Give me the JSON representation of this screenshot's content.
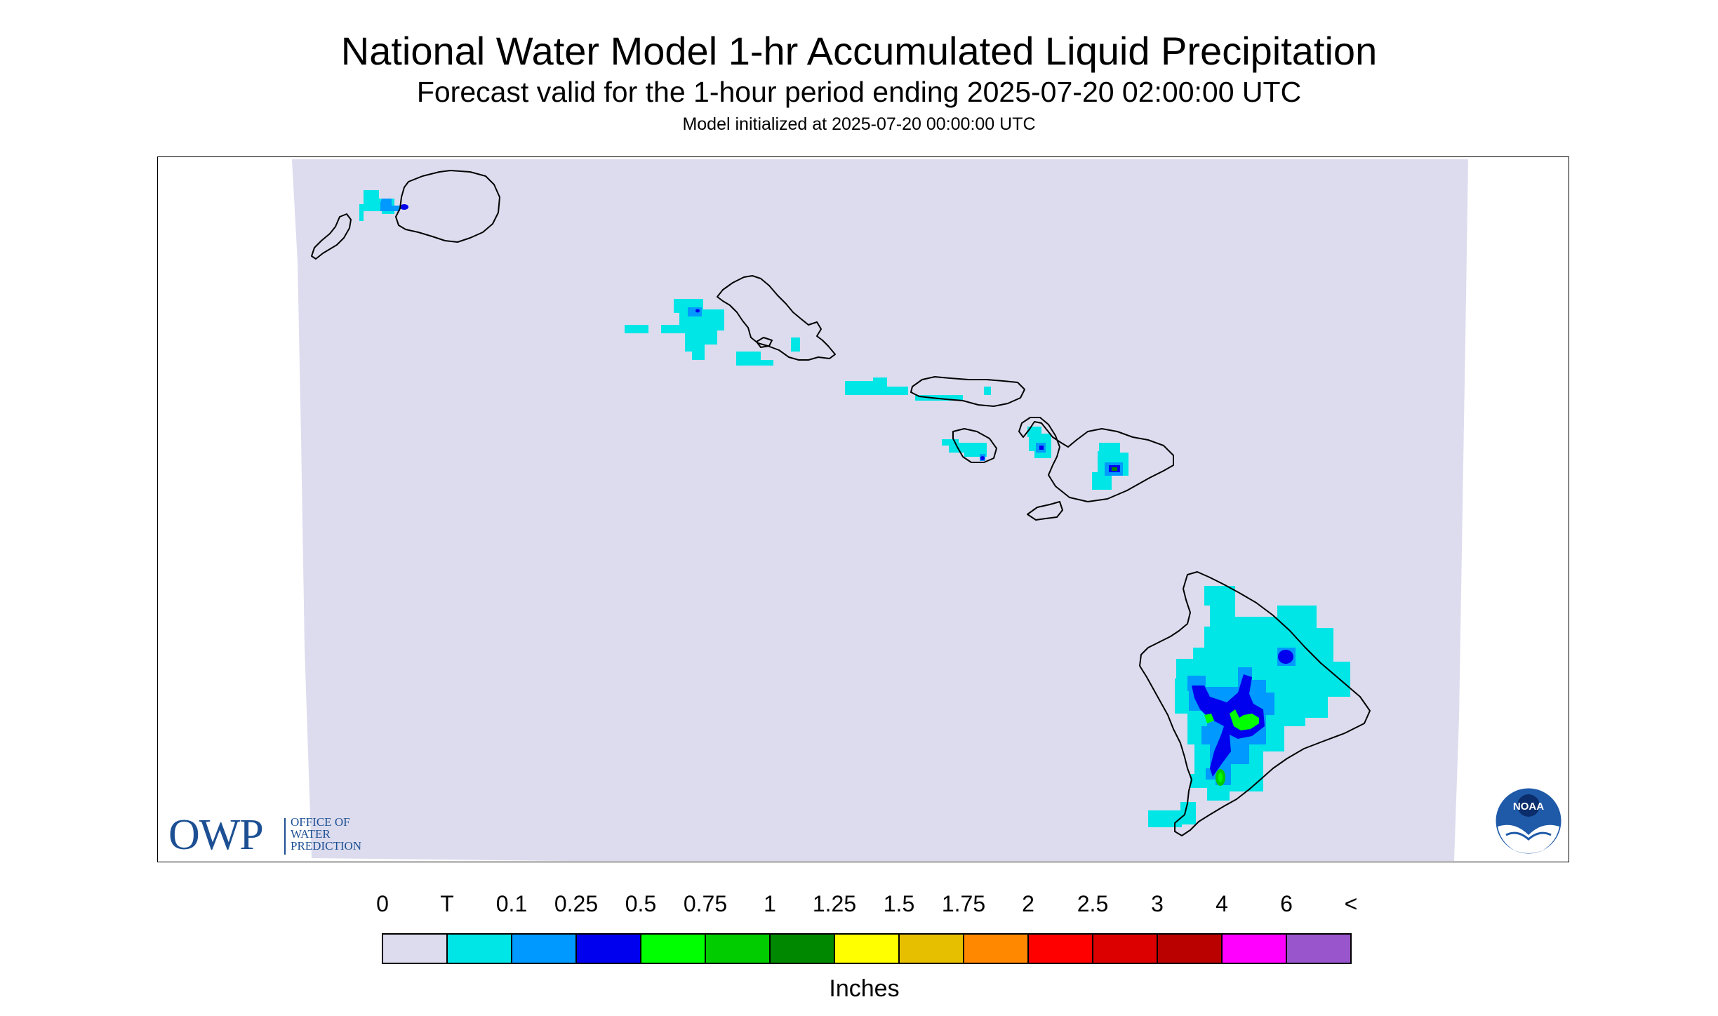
{
  "header": {
    "title": "National Water Model 1-hr Accumulated Liquid Precipitation",
    "subtitle": "Forecast valid for the 1-hour period ending 2025-07-20 02:00:00 UTC",
    "init_line": "Model initialized at 2025-07-20 00:00:00 UTC"
  },
  "logos": {
    "owp_big": "OWP",
    "owp_small": [
      "OFFICE OF",
      "WATER",
      "PREDICTION"
    ],
    "noaa_text": "NOAA",
    "owp_color": "#1c4f93",
    "noaa_color": "#1f5aa8"
  },
  "map": {
    "background_color": "#dcdcee",
    "coastline_color": "#000000",
    "islands": [
      "Kauai",
      "Niihau",
      "Oahu",
      "Molokai",
      "Lanai",
      "Maui",
      "Kahoolawe",
      "Hawaii"
    ]
  },
  "legend": {
    "labels": [
      "0",
      "T",
      "0.1",
      "0.25",
      "0.5",
      "0.75",
      "1",
      "1.25",
      "1.5",
      "1.75",
      "2",
      "2.5",
      "3",
      "4",
      "6",
      "<"
    ],
    "colors": [
      "#dcdcee",
      "#00e5e5",
      "#0099ff",
      "#0000ee",
      "#00ff00",
      "#00cc00",
      "#008800",
      "#ffff00",
      "#e6bf00",
      "#ff8800",
      "#ff0000",
      "#dd0000",
      "#bb0000",
      "#ff00ff",
      "#9955cc"
    ],
    "units": "Inches"
  }
}
